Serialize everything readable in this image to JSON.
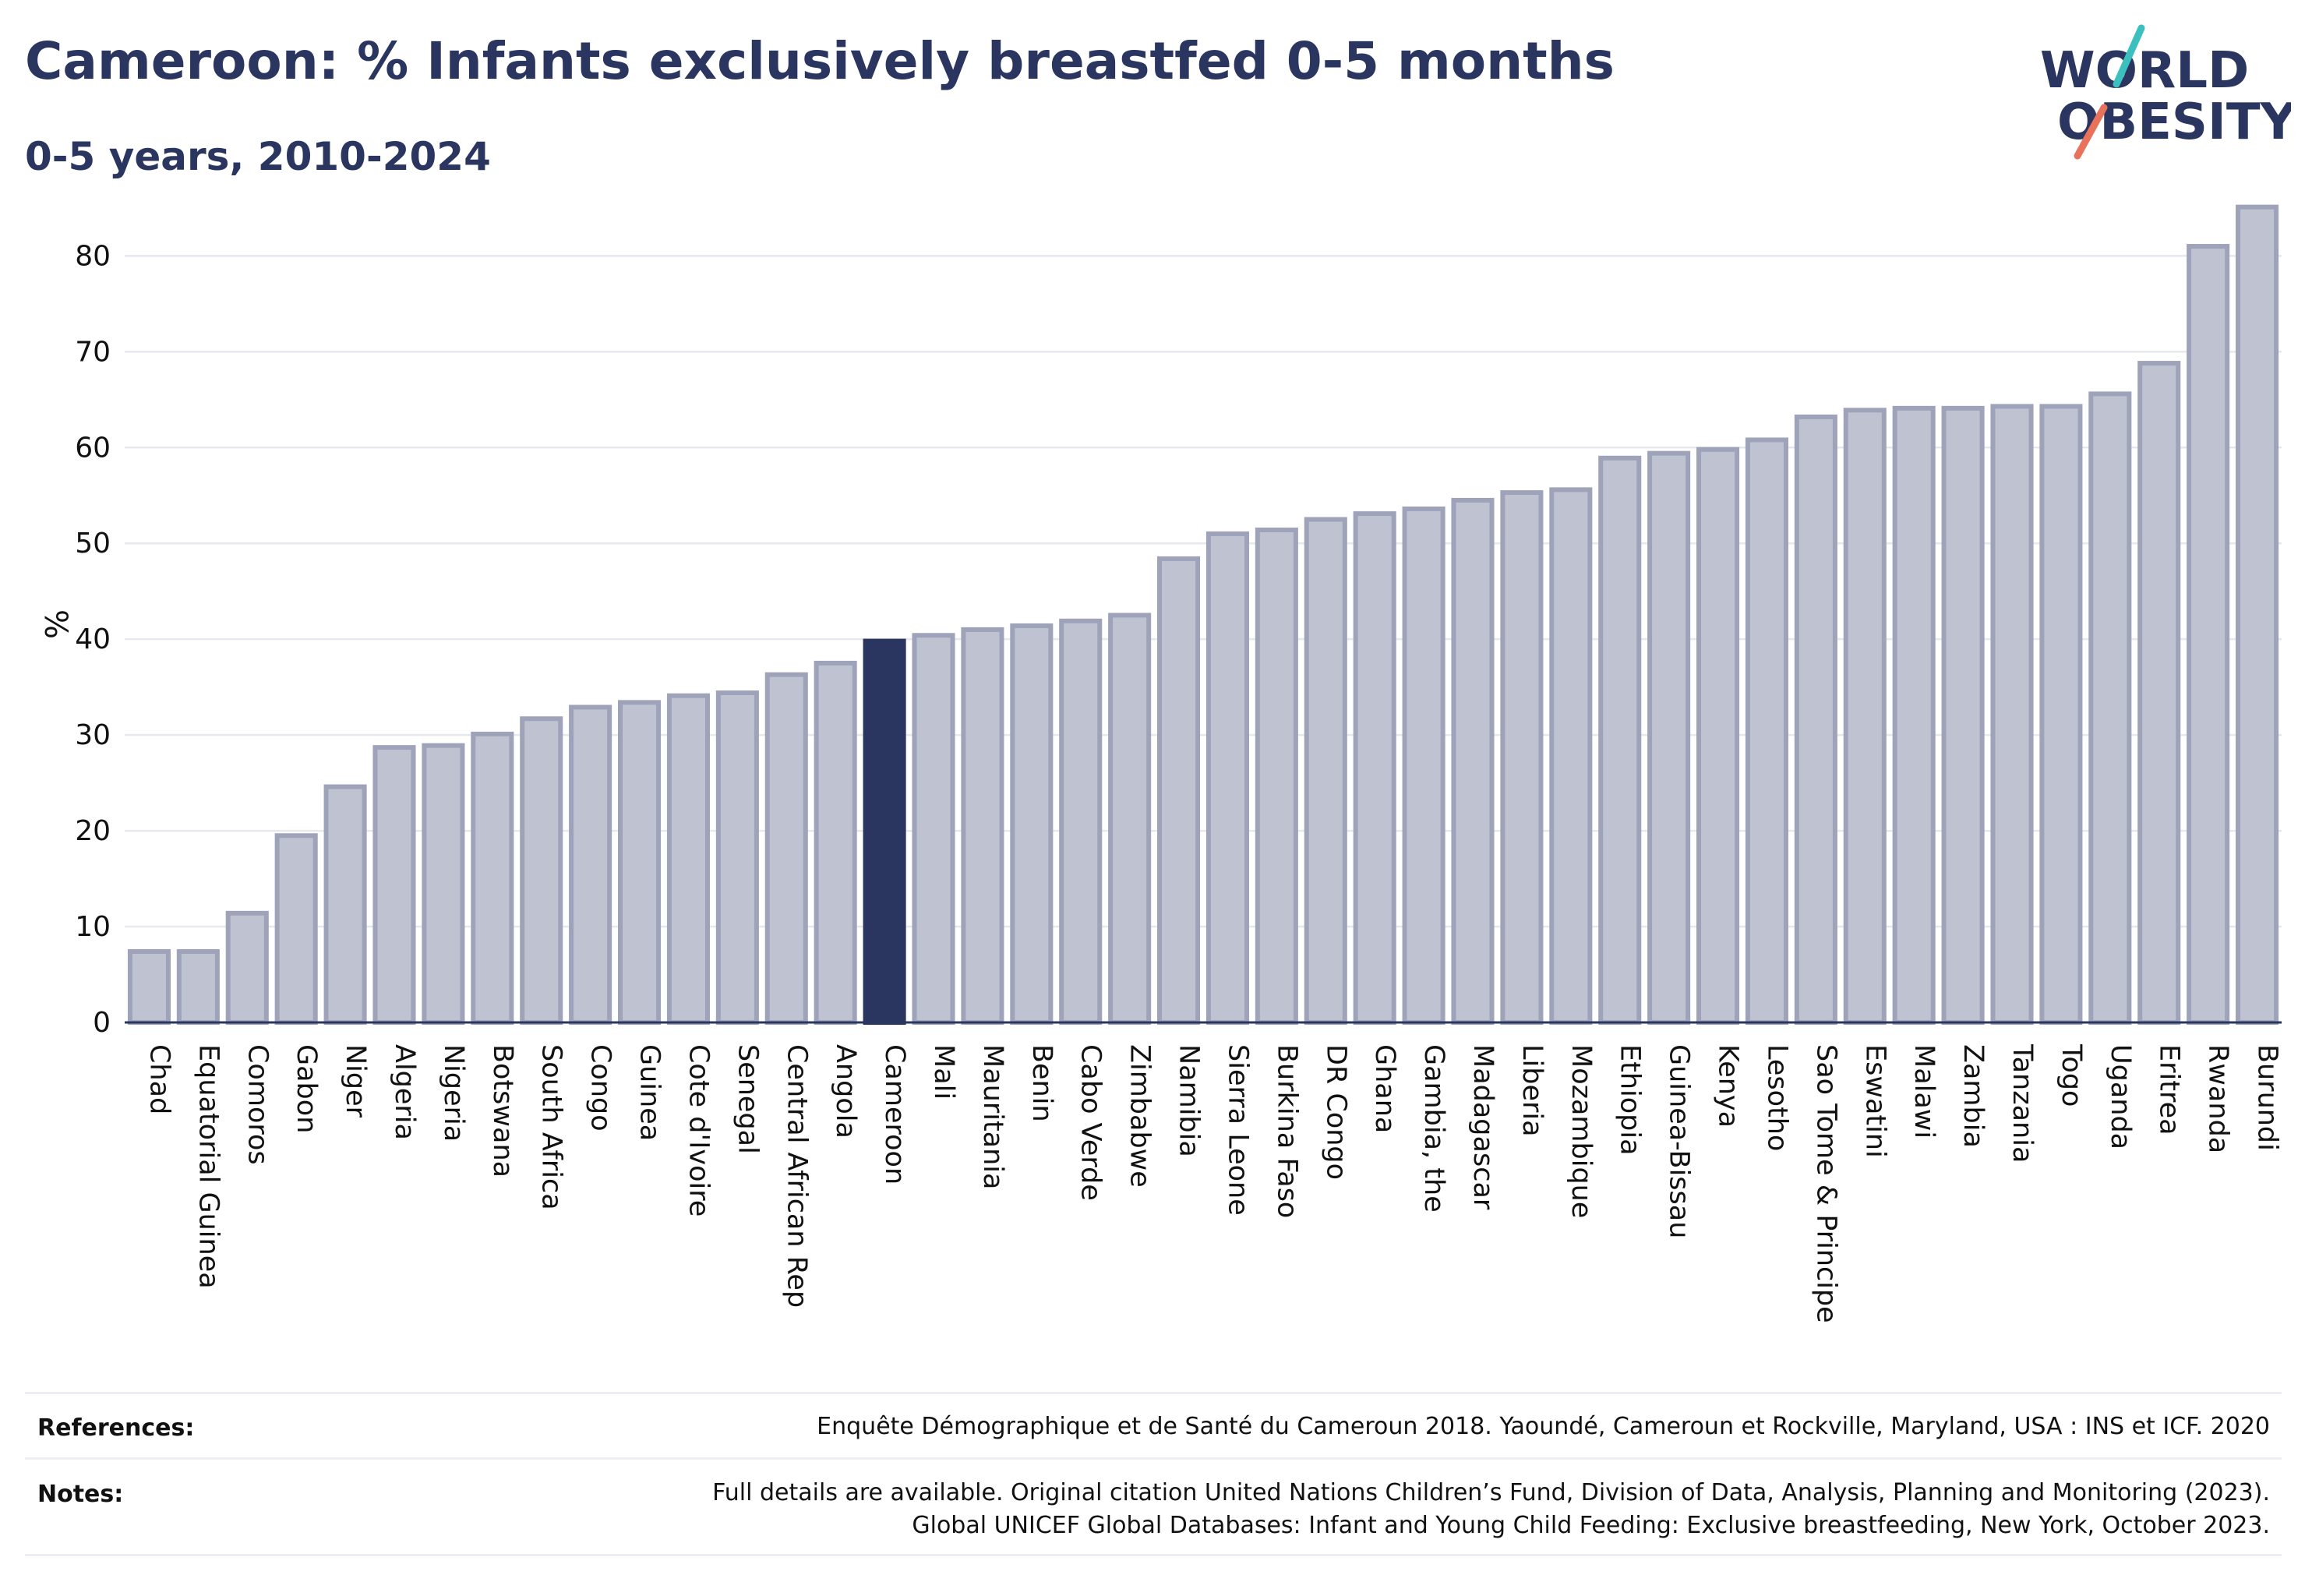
{
  "header": {
    "title": "Cameroon: % Infants exclusively breastfed 0-5 months",
    "subtitle": "0-5 years, 2010-2024"
  },
  "logo": {
    "line1": "WORLD",
    "line2": "OBESITY",
    "text_color": "#2a3560",
    "slash_colors": [
      "#3bbfbf",
      "#e8735a"
    ]
  },
  "chart_data": {
    "type": "bar",
    "ylabel": "%",
    "xlabel": "",
    "ylim": [
      0,
      88
    ],
    "yticks": [
      0,
      10,
      20,
      30,
      40,
      50,
      60,
      70,
      80
    ],
    "grid": true,
    "highlight": "Cameroon",
    "bar_color": "#bfc3d1",
    "bar_border_color": "#9ea3ba",
    "highlight_color": "#2a3560",
    "categories": [
      "Chad",
      "Equatorial Guinea",
      "Comoros",
      "Gabon",
      "Niger",
      "Algeria",
      "Nigeria",
      "Botswana",
      "South Africa",
      "Congo",
      "Guinea",
      "Cote d'Ivoire",
      "Senegal",
      "Central African Rep",
      "Angola",
      "Cameroon",
      "Mali",
      "Mauritania",
      "Benin",
      "Cabo Verde",
      "Zimbabwe",
      "Namibia",
      "Sierra Leone",
      "Burkina Faso",
      "DR Congo",
      "Ghana",
      "Gambia, the",
      "Madagascar",
      "Liberia",
      "Mozambique",
      "Ethiopia",
      "Guinea-Bissau",
      "Kenya",
      "Lesotho",
      "Sao Tome & Principe",
      "Eswatini",
      "Malawi",
      "Zambia",
      "Tanzania",
      "Togo",
      "Uganda",
      "Eritrea",
      "Rwanda",
      "Burundi"
    ],
    "values": [
      7.4,
      7.4,
      11.4,
      19.5,
      24.6,
      28.7,
      28.9,
      30.1,
      31.7,
      32.9,
      33.4,
      34.1,
      34.4,
      36.3,
      37.5,
      39.8,
      40.4,
      41.0,
      41.4,
      41.9,
      42.5,
      48.4,
      51.0,
      51.4,
      52.5,
      53.1,
      53.6,
      54.5,
      55.3,
      55.6,
      58.9,
      59.4,
      59.8,
      60.8,
      63.2,
      63.9,
      64.1,
      64.1,
      64.3,
      64.3,
      65.6,
      68.8,
      81.0,
      85.1
    ]
  },
  "footer": {
    "references_label": "References:",
    "references_text": "Enquête Démographique et de Santé du Cameroun 2018. Yaoundé, Cameroun et Rockville, Maryland, USA : INS et ICF. 2020",
    "notes_label": "Notes:",
    "notes_line1": "Full details are available. Original citation United Nations Children’s Fund, Division of Data, Analysis, Planning and Monitoring (2023).",
    "notes_line2": "Global UNICEF Global Databases: Infant and Young Child Feeding: Exclusive breastfeeding, New York, October 2023."
  }
}
